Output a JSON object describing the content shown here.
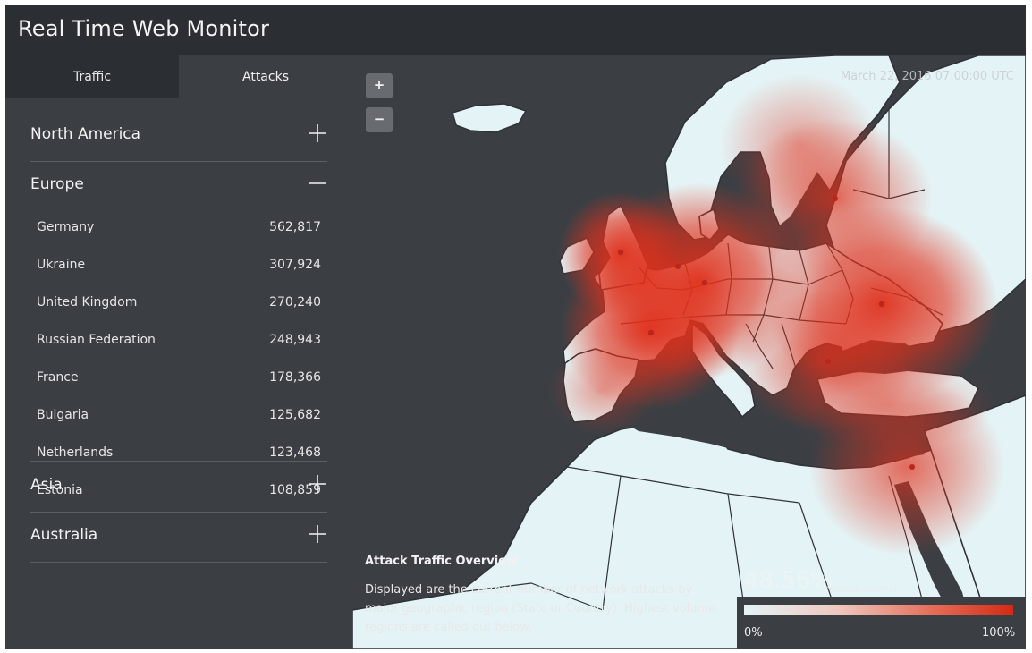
{
  "app": {
    "title": "Real Time Web Monitor"
  },
  "tabs": [
    {
      "label": "Traffic",
      "selected": false
    },
    {
      "label": "Attacks",
      "selected": true
    }
  ],
  "regions": {
    "north_america": {
      "label": "North America",
      "expanded": false
    },
    "europe": {
      "label": "Europe",
      "expanded": true,
      "countries": [
        {
          "name": "Germany",
          "value": "562,817"
        },
        {
          "name": "Ukraine",
          "value": "307,924"
        },
        {
          "name": "United Kingdom",
          "value": "270,240"
        },
        {
          "name": "Russian Federation",
          "value": "248,943"
        },
        {
          "name": "France",
          "value": "178,366"
        },
        {
          "name": "Bulgaria",
          "value": "125,682"
        },
        {
          "name": "Netherlands",
          "value": "123,468"
        },
        {
          "name": "Estonia",
          "value": "108,859"
        }
      ]
    },
    "asia": {
      "label": "Asia",
      "expanded": false
    },
    "australia": {
      "label": "Australia",
      "expanded": false
    }
  },
  "map": {
    "timestamp": "March 22, 2016 07:00:00 UTC",
    "zoom_in_label": "+",
    "zoom_out_label": "−",
    "overview_title": "Attack Traffic Overview",
    "overview_text": "Displayed are the current number of network attacks by major geographic region (State or Country). Highest volume regions are called out below.",
    "percent": "48.56%",
    "percent_note": "Below normal",
    "legend_min": "0%",
    "legend_max": "100%"
  },
  "colors": {
    "background": "#3b3f44",
    "header": "#2b2e32",
    "land": "#e4f4f6",
    "heat": "#e0301b"
  }
}
